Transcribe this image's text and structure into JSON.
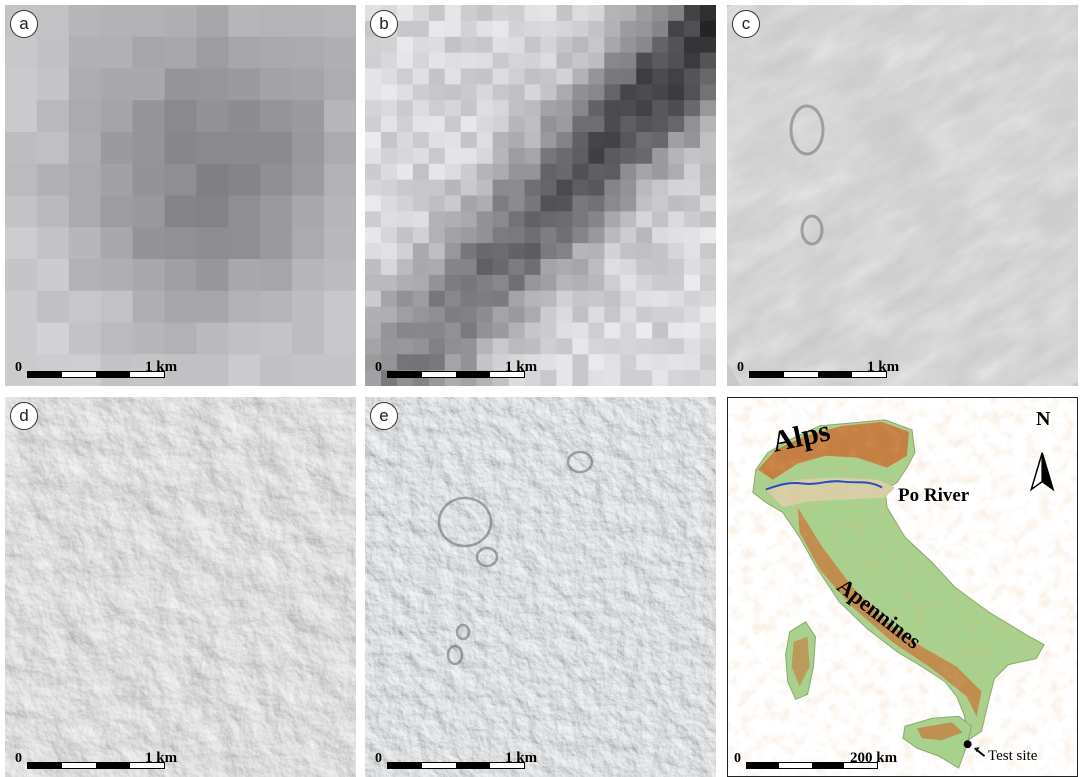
{
  "panels": [
    {
      "label": "a",
      "scale_start": "0",
      "scale_end": "1 km"
    },
    {
      "label": "b",
      "scale_start": "0",
      "scale_end": "1 km"
    },
    {
      "label": "c",
      "scale_start": "0",
      "scale_end": "1 km"
    },
    {
      "label": "d",
      "scale_start": "0",
      "scale_end": "1 km"
    },
    {
      "label": "e",
      "scale_start": "0",
      "scale_end": "1 km"
    }
  ],
  "italy_map": {
    "labels": {
      "alps": "Alps",
      "po_river": "Po River",
      "apennines": "Apennines",
      "north": "N",
      "test_site": "Test site"
    },
    "scale_start": "0",
    "scale_end": "200 km",
    "colors": {
      "lowland": "#a9d18e",
      "mountain": "#c8763a",
      "plain": "#d8cfa6",
      "river": "#2a4dbf"
    }
  }
}
